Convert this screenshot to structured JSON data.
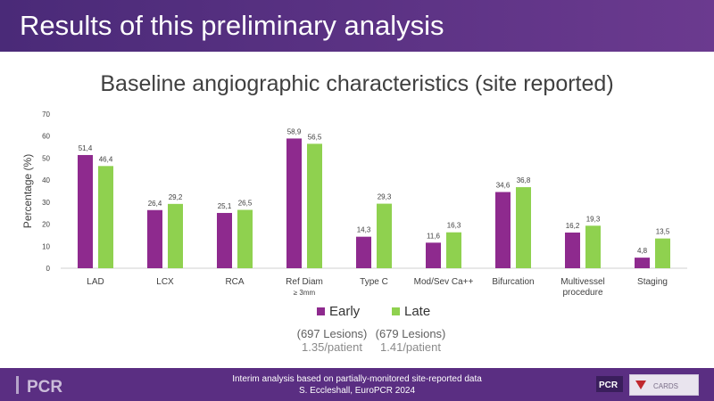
{
  "header": {
    "title": "Results of this preliminary analysis"
  },
  "chart_data": {
    "type": "bar",
    "title": "Baseline angiographic characteristics (site reported)",
    "ylabel": "Percentage (%)",
    "ylim": [
      0,
      70
    ],
    "yticks": [
      0,
      10,
      20,
      30,
      40,
      50,
      60,
      70
    ],
    "categories": [
      "LAD",
      "LCX",
      "RCA",
      "Ref Diam ≥ 3mm",
      "Type C",
      "Mod/Sev Ca++",
      "Bifurcation",
      "Multivessel procedure",
      "Staging"
    ],
    "category_lines": [
      [
        "LAD"
      ],
      [
        "LCX"
      ],
      [
        "RCA"
      ],
      [
        "Ref Diam",
        "≥ 3mm"
      ],
      [
        "Type C"
      ],
      [
        "Mod/Sev Ca++"
      ],
      [
        "Bifurcation"
      ],
      [
        "Multivessel",
        "procedure"
      ],
      [
        "Staging"
      ]
    ],
    "series": [
      {
        "name": "Early",
        "color": "#8e2a8e",
        "values": [
          51.4,
          26.4,
          25.1,
          58.9,
          14.3,
          11.6,
          34.6,
          16.2,
          4.8
        ],
        "labels": [
          "51,4",
          "26,4",
          "25,1",
          "58,9",
          "14,3",
          "11,6",
          "34,6",
          "16,2",
          "4,8"
        ]
      },
      {
        "name": "Late",
        "color": "#8fd14f",
        "values": [
          46.4,
          29.2,
          26.5,
          56.5,
          29.3,
          16.3,
          36.8,
          19.3,
          13.5
        ],
        "labels": [
          "46,4",
          "29,2",
          "26,5",
          "56,5",
          "29,3",
          "16,3",
          "36,8",
          "19,3",
          "13,5"
        ]
      }
    ],
    "grid": false,
    "legend": "bottom"
  },
  "lesions": {
    "early": {
      "count": "(697 Lesions)",
      "per_patient": "1.35/patient"
    },
    "late": {
      "count": "(679 Lesions)",
      "per_patient": "1.41/patient"
    }
  },
  "footer": {
    "line1": "Interim analysis based on partially-monitored site-reported data",
    "line2": "S. Eccleshall, EuroPCR 2024",
    "logo_left_text": "PCR",
    "logo_mini_text": "PCR",
    "logo_right_text": "CARDS"
  }
}
